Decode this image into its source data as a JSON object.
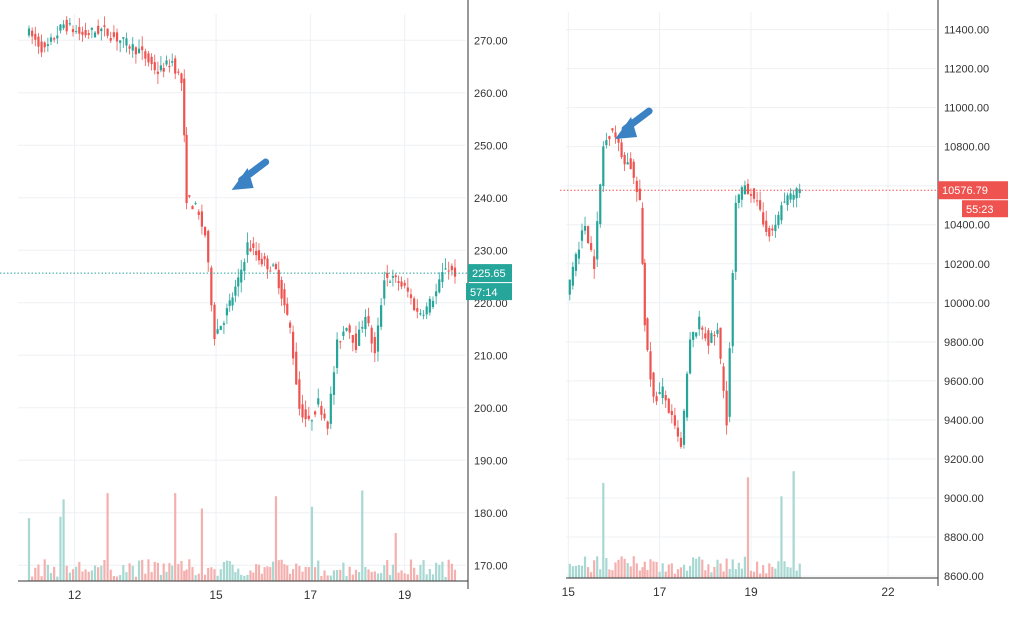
{
  "colors": {
    "up": "#26a69a",
    "down": "#ef5350",
    "up_volume": "#a8d8d2",
    "down_volume": "#f4b0ae",
    "arrow": "#3a82c4",
    "grid": "#eef0f3",
    "axis": "#333333"
  },
  "chart_data": [
    {
      "type": "candlestick",
      "ylim": [
        167,
        275
      ],
      "yticks": [
        "270.00",
        "260.00",
        "250.00",
        "240.00",
        "230.00",
        "220.00",
        "210.00",
        "200.00",
        "190.00",
        "180.00",
        "170.00"
      ],
      "ytick_values": [
        270,
        260,
        250,
        240,
        230,
        220,
        210,
        200,
        190,
        180,
        170
      ],
      "xticks": [
        "12",
        "15",
        "17",
        "19"
      ],
      "xtick_values": [
        12,
        15,
        17,
        19
      ],
      "xlim": [
        10.8,
        20.3
      ],
      "last_price": 225.65,
      "last_price_label": "225.65",
      "countdown_label": "57:14",
      "last_price_color": "up",
      "annotation": {
        "type": "arrow",
        "x": 15.5,
        "y": 243,
        "direction": "down-left"
      },
      "price_path": [
        [
          11.0,
          272
        ],
        [
          11.4,
          268
        ],
        [
          11.8,
          273
        ],
        [
          12.2,
          271
        ],
        [
          12.6,
          272
        ],
        [
          13.0,
          270
        ],
        [
          13.4,
          268
        ],
        [
          13.8,
          264
        ],
        [
          14.1,
          266
        ],
        [
          14.3,
          262
        ],
        [
          14.4,
          240
        ],
        [
          14.6,
          238
        ],
        [
          14.8,
          233
        ],
        [
          15.0,
          214
        ],
        [
          15.2,
          217
        ],
        [
          15.5,
          224
        ],
        [
          15.7,
          231
        ],
        [
          16.0,
          228
        ],
        [
          16.3,
          226
        ],
        [
          16.6,
          215
        ],
        [
          16.8,
          200
        ],
        [
          17.0,
          197
        ],
        [
          17.2,
          201
        ],
        [
          17.4,
          197
        ],
        [
          17.6,
          212
        ],
        [
          17.8,
          216
        ],
        [
          18.0,
          212
        ],
        [
          18.2,
          218
        ],
        [
          18.4,
          210
        ],
        [
          18.6,
          225
        ],
        [
          18.9,
          224
        ],
        [
          19.1,
          222
        ],
        [
          19.3,
          218
        ],
        [
          19.5,
          219
        ],
        [
          19.7,
          222
        ],
        [
          19.9,
          227
        ],
        [
          20.1,
          225.65
        ]
      ]
    },
    {
      "type": "candlestick",
      "ylim": [
        8590,
        11490
      ],
      "yticks": [
        "11400.00",
        "11200.00",
        "11000.00",
        "10800.00",
        "10600.00",
        "10400.00",
        "10200.00",
        "10000.00",
        "9800.00",
        "9600.00",
        "9400.00",
        "9200.00",
        "9000.00",
        "8800.00",
        "8600.00"
      ],
      "ytick_values": [
        11400,
        11200,
        11000,
        10800,
        10600,
        10400,
        10200,
        10000,
        9800,
        9600,
        9400,
        9200,
        9000,
        8800,
        8600
      ],
      "xticks": [
        "15",
        "17",
        "19",
        "22"
      ],
      "xtick_values": [
        15,
        17,
        19,
        22
      ],
      "xlim": [
        14.95,
        23.05
      ],
      "last_price": 10576.79,
      "last_price_label": "10576.79",
      "countdown_label": "55:23",
      "last_price_color": "down",
      "annotation": {
        "type": "arrow",
        "x": 16.2,
        "y": 10880,
        "direction": "down-left"
      },
      "price_path": [
        [
          15.0,
          10050
        ],
        [
          15.2,
          10250
        ],
        [
          15.4,
          10400
        ],
        [
          15.6,
          10200
        ],
        [
          15.8,
          10800
        ],
        [
          16.0,
          10900
        ],
        [
          16.2,
          10750
        ],
        [
          16.4,
          10700
        ],
        [
          16.6,
          10500
        ],
        [
          16.7,
          9900
        ],
        [
          16.9,
          9500
        ],
        [
          17.1,
          9550
        ],
        [
          17.3,
          9400
        ],
        [
          17.5,
          9250
        ],
        [
          17.7,
          9800
        ],
        [
          17.9,
          9900
        ],
        [
          18.1,
          9800
        ],
        [
          18.3,
          9850
        ],
        [
          18.5,
          9400
        ],
        [
          18.7,
          10500
        ],
        [
          18.9,
          10600
        ],
        [
          19.1,
          10550
        ],
        [
          19.3,
          10400
        ],
        [
          19.5,
          10350
        ],
        [
          19.7,
          10500
        ],
        [
          19.9,
          10550
        ],
        [
          20.1,
          10576.79
        ]
      ]
    }
  ]
}
